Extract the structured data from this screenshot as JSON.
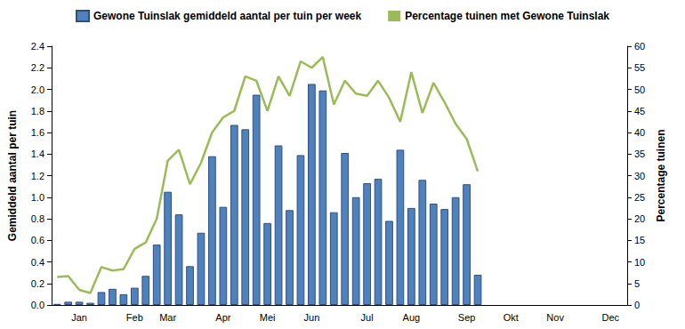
{
  "chart_data": {
    "type": "bar",
    "categories": [
      null,
      null,
      "Jan",
      null,
      null,
      null,
      null,
      "Feb",
      null,
      null,
      "Mar",
      null,
      null,
      null,
      null,
      "Apr",
      null,
      null,
      null,
      "Mei",
      null,
      null,
      null,
      "Jun",
      null,
      null,
      null,
      null,
      "Jul",
      null,
      null,
      null,
      "Aug",
      null,
      null,
      null,
      null,
      "Sep",
      null,
      null,
      null,
      "Okt",
      null,
      null,
      null,
      "Nov",
      null,
      null,
      null,
      null,
      "Dec",
      null
    ],
    "series": [
      {
        "name": "Gewone Tuinslak gemiddeld aantal per tuin per week",
        "type": "bar",
        "color": "#4f81bd",
        "values": [
          0.01,
          0.03,
          0.03,
          0.02,
          0.12,
          0.15,
          0.1,
          0.16,
          0.27,
          0.56,
          1.05,
          0.84,
          0.36,
          0.67,
          1.38,
          0.91,
          1.67,
          1.63,
          1.95,
          0.76,
          1.48,
          0.88,
          1.39,
          2.05,
          1.99,
          0.86,
          1.41,
          1.0,
          1.13,
          1.17,
          0.78,
          1.44,
          0.9,
          1.16,
          0.94,
          0.89,
          1.0,
          1.12,
          0.28,
          null,
          null,
          null,
          null,
          null,
          null,
          null,
          null,
          null,
          null,
          null,
          null,
          null
        ]
      },
      {
        "name": "Percentage tuinen met Gewone Tuinslak",
        "type": "line",
        "axis": "y2",
        "color": "#9bbb59",
        "marker": "none",
        "values": [
          6.5,
          6.7,
          3.5,
          2.8,
          8.8,
          8.0,
          8.3,
          13,
          14.5,
          20,
          33.5,
          36,
          28,
          33,
          40,
          43.5,
          45,
          53,
          52,
          45,
          53,
          48.5,
          56.5,
          55,
          57.5,
          46.5,
          52,
          49,
          48.5,
          52,
          48,
          42.5,
          54,
          44.5,
          51.5,
          47,
          42,
          38.5,
          31,
          null,
          null,
          null,
          null,
          null,
          null,
          null,
          null,
          null,
          null,
          null,
          null,
          null
        ]
      }
    ],
    "y_label": "Gemiddeld aantal per tuin",
    "y2_label": "Percentage tuinen",
    "ylim": [
      0,
      2.4
    ],
    "yticks": [
      {
        "value": 0,
        "label": "0.0"
      },
      0.2,
      0.4,
      0.6,
      0.8,
      {
        "value": 1,
        "label": "1.0"
      },
      1.2,
      1.4,
      1.6,
      1.8,
      {
        "value": 2,
        "label": "2.0"
      },
      2.2,
      2.4
    ],
    "y2lim": [
      0,
      60
    ],
    "y2ticks": [
      0,
      5,
      10,
      15,
      20,
      25,
      30,
      35,
      40,
      45,
      50,
      55,
      60
    ],
    "grid": false,
    "legend": "top"
  }
}
